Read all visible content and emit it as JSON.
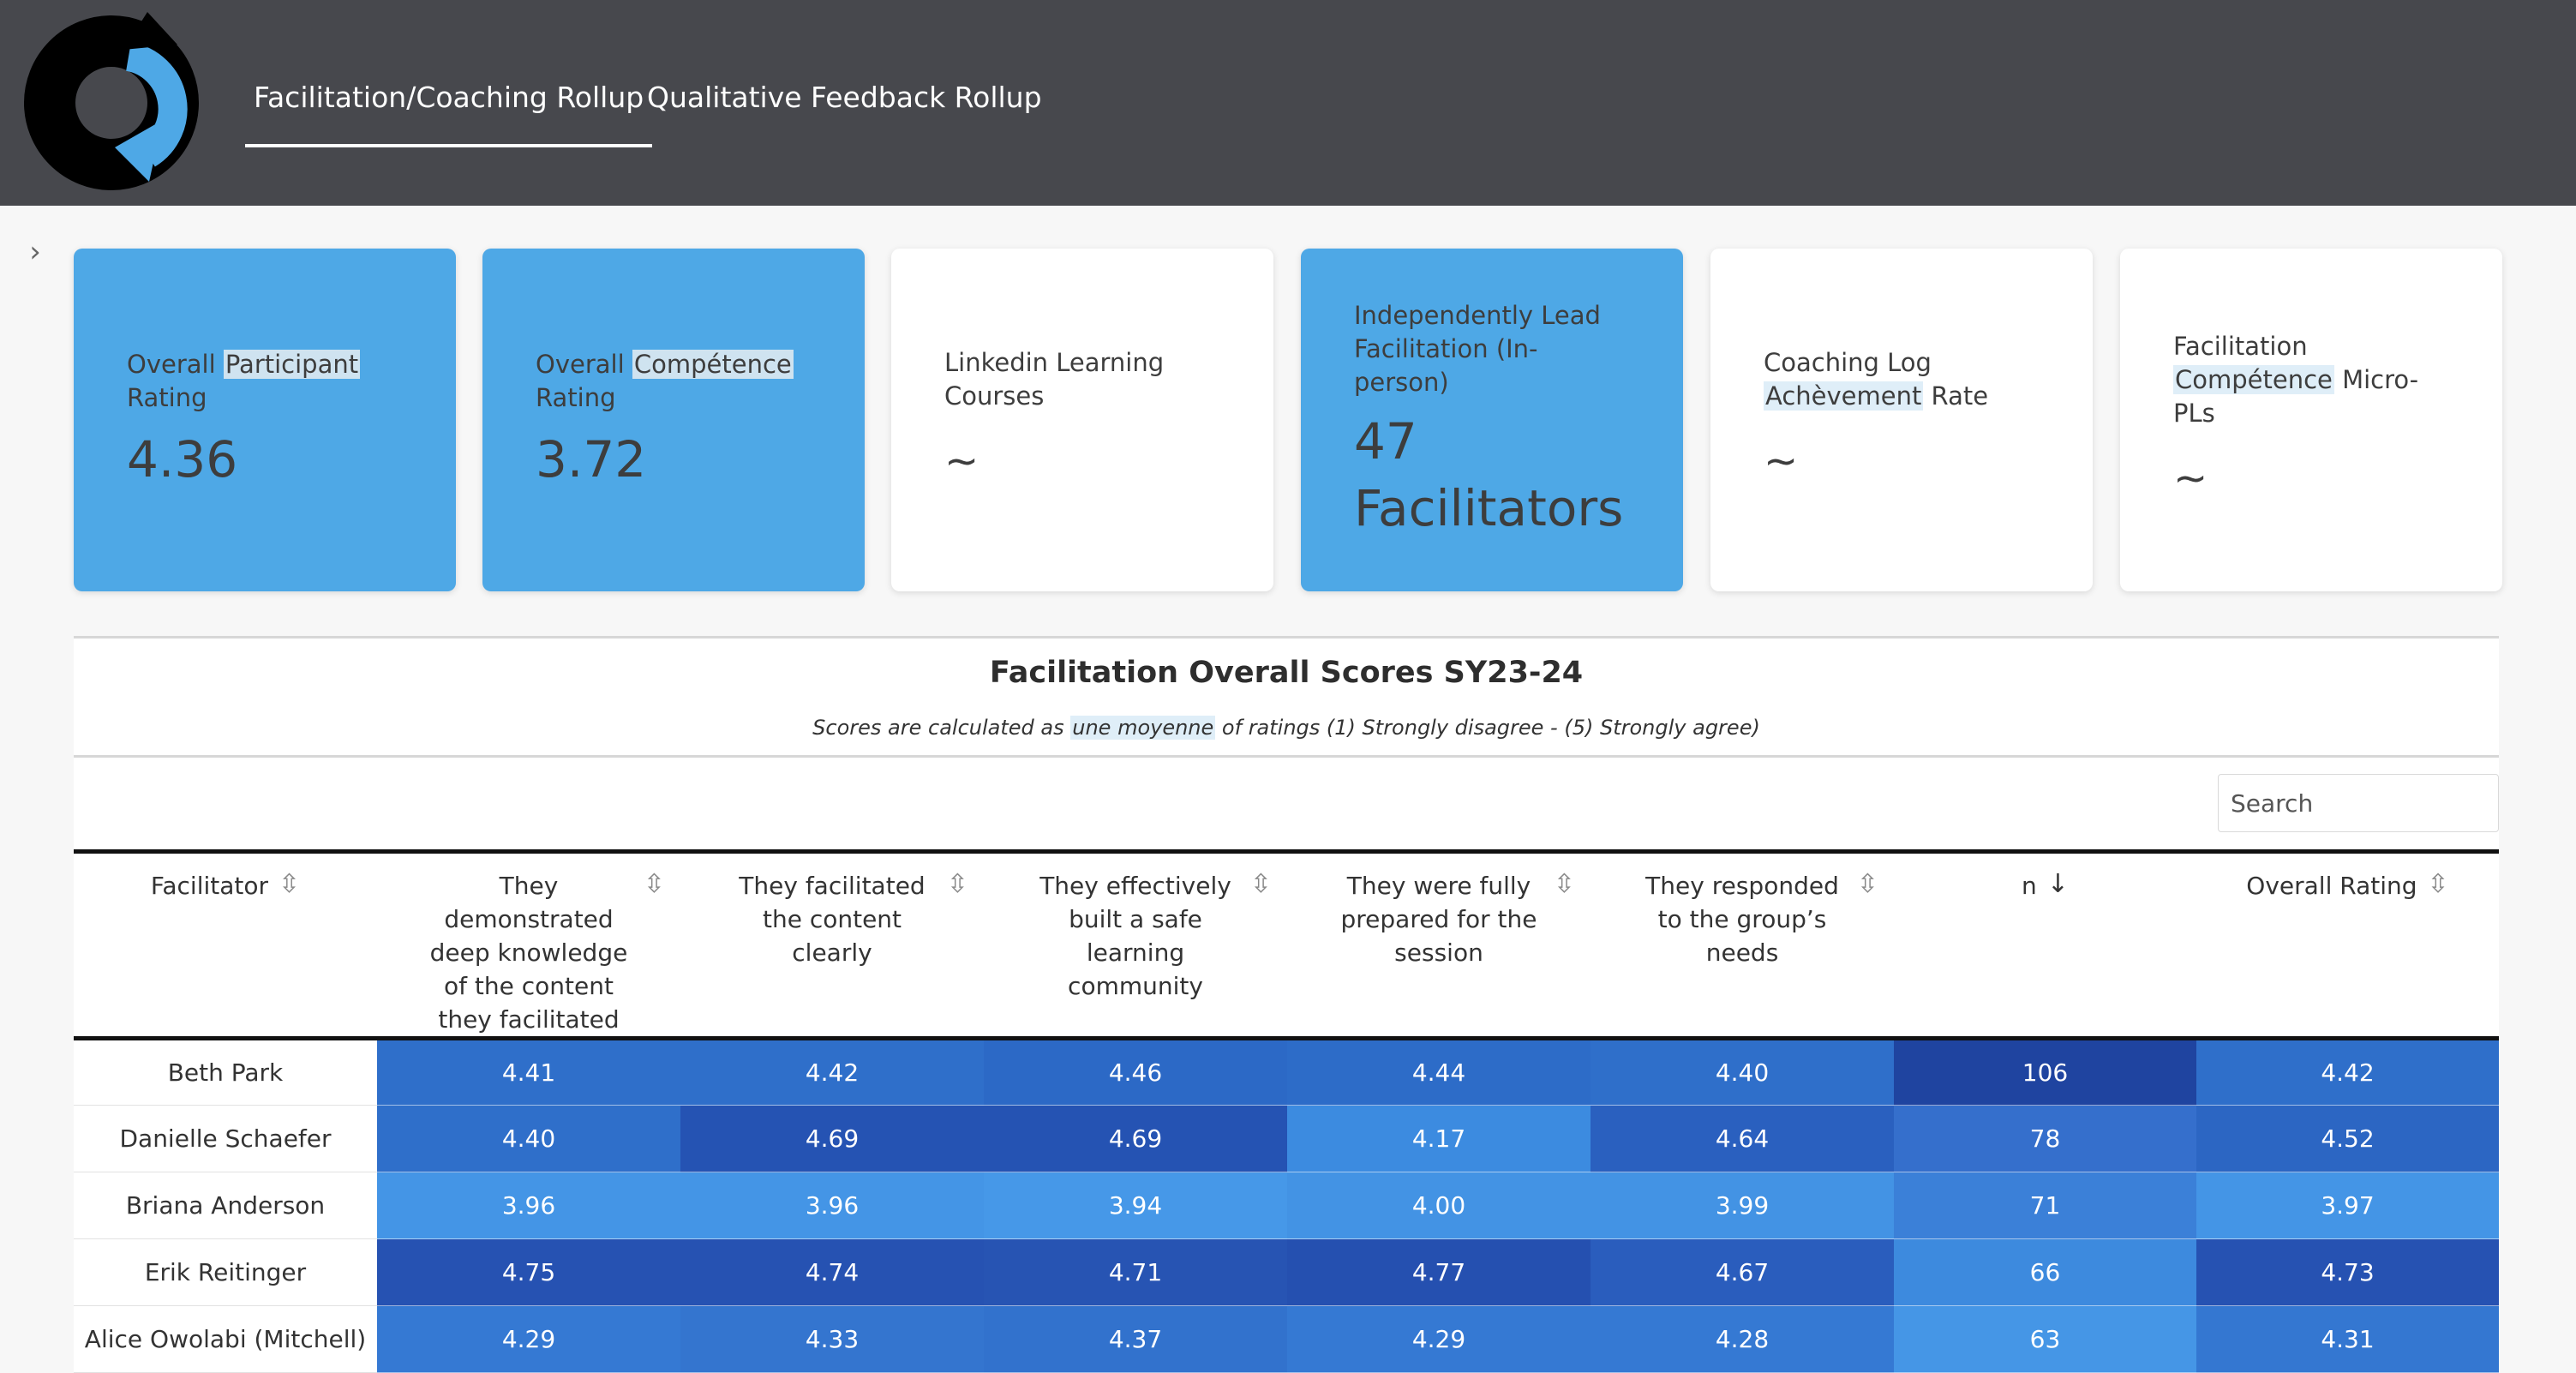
{
  "header": {
    "logo": "refresh-cycle-logo",
    "tabs": [
      {
        "label": "Facilitation/Coaching Rollup",
        "active": true
      },
      {
        "label": "Qualitative Feedback Rollup",
        "active": false
      }
    ]
  },
  "cards": [
    {
      "title_pre": "Overall ",
      "title_hl": "Participant",
      "title_post": " Rating",
      "value": "4.36",
      "color": "#4ea8e6"
    },
    {
      "title_pre": "Overall ",
      "title_hl": "Compétence",
      "title_post": " Rating",
      "value": "3.72",
      "color": "#4ea8e6"
    },
    {
      "title": "Linkedin Learning Courses",
      "value": "~",
      "color": "#ffffff"
    },
    {
      "title": "Independently Lead Facilitation (In-person)",
      "value_line1": "47",
      "value_line2": "Facilitators",
      "color": "#4ea8e6"
    },
    {
      "title_pre": "Coaching Log ",
      "title_hl": "Achèvement",
      "title_post": " Rate",
      "value": "~",
      "color": "#ffffff"
    },
    {
      "title_pre": "Facilitation ",
      "title_hl": "Compétence",
      "title_post": " Micro-PLs",
      "value": "~",
      "color": "#ffffff"
    }
  ],
  "section": {
    "title": "Facilitation Overall Scores SY23-24",
    "subtitle_pre": "Scores are calculated as ",
    "subtitle_hl": "une moyenne",
    "subtitle_post": " of ratings (1) Strongly disagree - (5) Strongly agree)",
    "search_placeholder": "Search"
  },
  "table": {
    "columns": [
      {
        "label": "Facilitator",
        "sort": "none"
      },
      {
        "label": "They demonstrated deep knowledge of the content they facilitated",
        "sort": "none"
      },
      {
        "label": "They facilitated the content clearly",
        "sort": "none"
      },
      {
        "label": "They effectively built a safe learning community",
        "sort": "none"
      },
      {
        "label": "They were fully prepared for the session",
        "sort": "none"
      },
      {
        "label": "They responded to the group’s needs",
        "sort": "none"
      },
      {
        "label": "n",
        "sort": "descending"
      },
      {
        "label": "Overall Rating",
        "sort": "none"
      }
    ],
    "rows": [
      {
        "name": "Beth Park",
        "values": [
          "4.41",
          "4.42",
          "4.46",
          "4.44",
          "4.40",
          "106",
          "4.42"
        ],
        "colors": [
          "#2f6fca",
          "#2f6fca",
          "#2c69c6",
          "#2d6cc8",
          "#2f6fca",
          "#1f44a0",
          "#2f6fca"
        ]
      },
      {
        "name": "Danielle Schaefer",
        "values": [
          "4.40",
          "4.69",
          "4.69",
          "4.17",
          "4.64",
          "78",
          "4.52"
        ],
        "colors": [
          "#2f6fca",
          "#2553b3",
          "#2553b3",
          "#3c8be0",
          "#2a60bf",
          "#356fcc",
          "#2c66c3"
        ]
      },
      {
        "name": "Briana Anderson",
        "values": [
          "3.96",
          "3.96",
          "3.94",
          "4.00",
          "3.99",
          "71",
          "3.97"
        ],
        "colors": [
          "#4495e6",
          "#4495e6",
          "#4698e8",
          "#4393e4",
          "#4393e4",
          "#3b80d8",
          "#4495e6"
        ]
      },
      {
        "name": "Erik Reitinger",
        "values": [
          "4.75",
          "4.74",
          "4.71",
          "4.77",
          "4.67",
          "66",
          "4.73"
        ],
        "colors": [
          "#2652b2",
          "#2652b2",
          "#2754b3",
          "#2550b0",
          "#2a5dbd",
          "#3d8ade",
          "#2652b2"
        ]
      },
      {
        "name": "Alice Owolabi (Mitchell)",
        "values": [
          "4.29",
          "4.33",
          "4.37",
          "4.29",
          "4.28",
          "63",
          "4.31"
        ],
        "colors": [
          "#3579d3",
          "#3475cf",
          "#3272cd",
          "#3579d3",
          "#3579d3",
          "#4596e6",
          "#3477d1"
        ]
      }
    ]
  }
}
